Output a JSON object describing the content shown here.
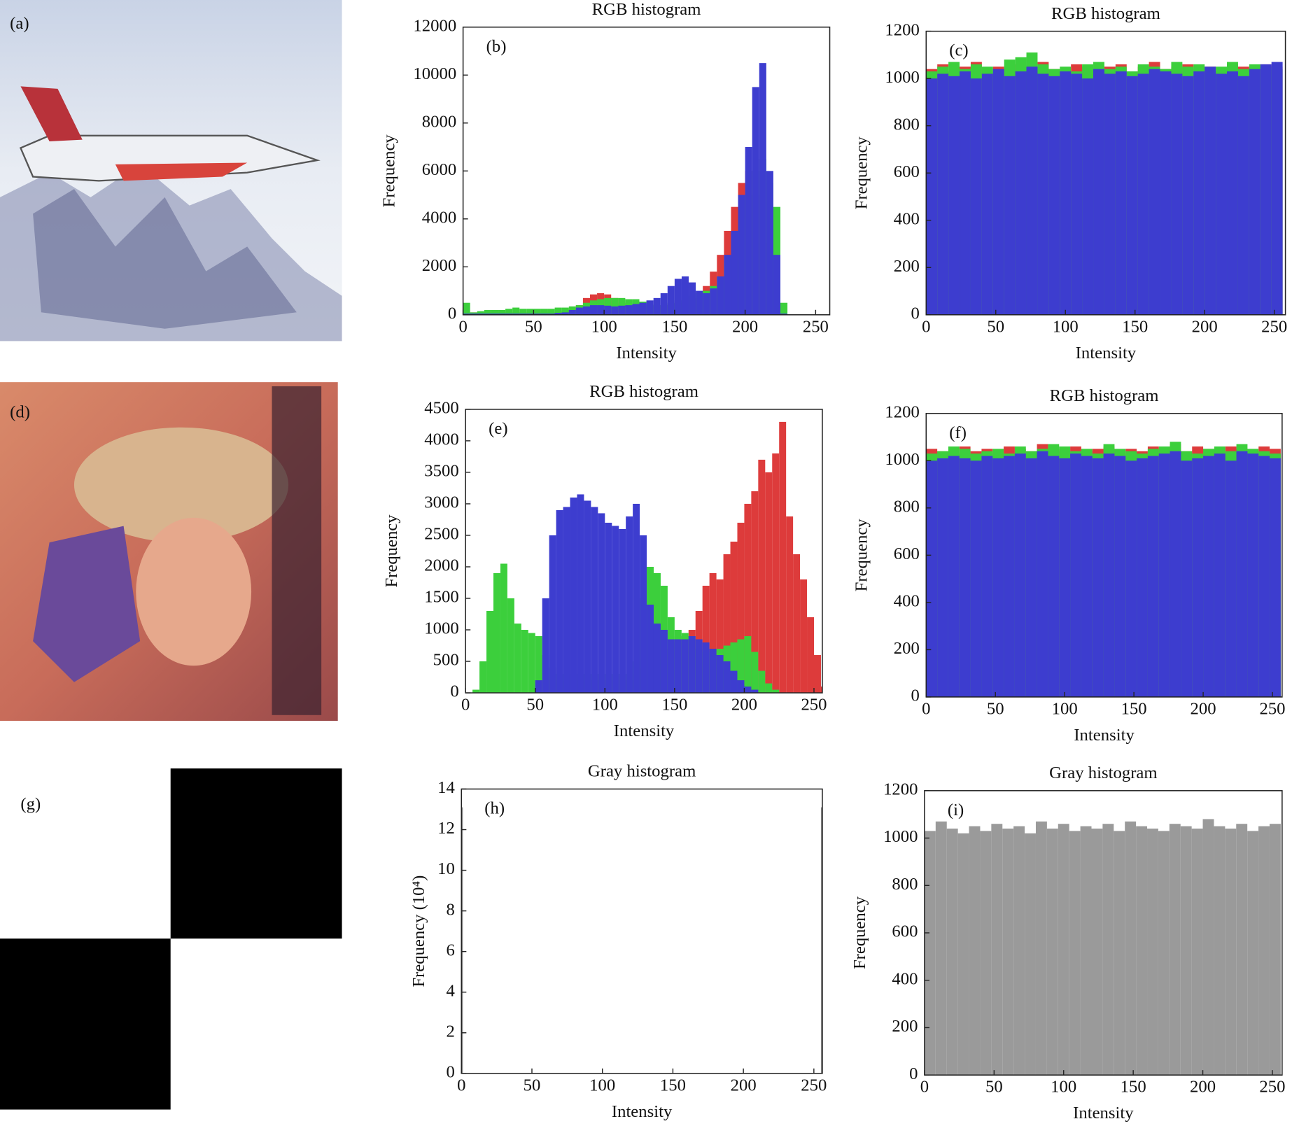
{
  "images": [
    {
      "label": "(a)"
    },
    {
      "label": "(d)"
    },
    {
      "label": "(g)"
    }
  ],
  "chart_data": [
    {
      "type": "histogram",
      "title": "RGB histogram",
      "label": "(b)",
      "x_label": "Intensity",
      "y_label": "Frequency",
      "bins": [
        0,
        5,
        10,
        15,
        20,
        25,
        30,
        35,
        40,
        45,
        50,
        55,
        60,
        65,
        70,
        75,
        80,
        85,
        90,
        95,
        100,
        105,
        110,
        115,
        120,
        125,
        130,
        135,
        140,
        145,
        150,
        155,
        160,
        165,
        170,
        175,
        180,
        185,
        190,
        195,
        200,
        205,
        210,
        215,
        220,
        225,
        230,
        235,
        240,
        245,
        250,
        255,
        260
      ],
      "series": [
        {
          "color": "#dd3b3b",
          "values": [
            50,
            100,
            100,
            100,
            100,
            100,
            100,
            100,
            100,
            100,
            100,
            100,
            100,
            100,
            150,
            250,
            400,
            700,
            850,
            900,
            850,
            700,
            500,
            350,
            300,
            300,
            300,
            350,
            400,
            450,
            500,
            500,
            500,
            700,
            1200,
            1800,
            2500,
            3500,
            4500,
            5500,
            6000,
            5000,
            3000,
            1500,
            500,
            0,
            0,
            0,
            0,
            0,
            0,
            0
          ]
        },
        {
          "color": "#3ccf3c",
          "values": [
            500,
            100,
            150,
            200,
            200,
            200,
            250,
            300,
            250,
            250,
            250,
            250,
            250,
            300,
            300,
            350,
            400,
            500,
            600,
            650,
            700,
            700,
            700,
            650,
            650,
            550,
            450,
            400,
            400,
            500,
            600,
            700,
            800,
            900,
            1000,
            1200,
            1600,
            2200,
            3000,
            4000,
            5000,
            6000,
            6500,
            5500,
            4500,
            500,
            0,
            0,
            0,
            0,
            0,
            0
          ]
        },
        {
          "color": "#3d3dcf",
          "values": [
            50,
            50,
            50,
            50,
            50,
            50,
            50,
            50,
            50,
            50,
            50,
            50,
            50,
            80,
            100,
            200,
            300,
            350,
            400,
            400,
            380,
            350,
            380,
            400,
            450,
            500,
            600,
            700,
            900,
            1200,
            1500,
            1600,
            1350,
            1000,
            900,
            1100,
            1600,
            2500,
            3500,
            5000,
            7000,
            9500,
            10500,
            6000,
            2500,
            50,
            0,
            0,
            0,
            0,
            0,
            0
          ]
        }
      ],
      "xlim": [
        0,
        260
      ],
      "ylim": [
        0,
        12000
      ],
      "xticks": [
        0,
        50,
        100,
        150,
        200,
        250
      ],
      "yticks": [
        0,
        2000,
        4000,
        6000,
        8000,
        10000,
        12000
      ]
    },
    {
      "type": "histogram",
      "title": "RGB histogram",
      "label": "(c)",
      "x_label": "Intensity",
      "y_label": "Frequency",
      "bins": [
        0,
        8,
        16,
        24,
        32,
        40,
        48,
        56,
        64,
        72,
        80,
        88,
        96,
        104,
        112,
        120,
        128,
        136,
        144,
        152,
        160,
        168,
        176,
        184,
        192,
        200,
        208,
        216,
        224,
        232,
        240,
        248,
        256
      ],
      "series": [
        {
          "color": "#dd3b3b",
          "values": [
            1040,
            1060,
            1030,
            1050,
            1070,
            1020,
            1050,
            1040,
            1060,
            1050,
            1070,
            1040,
            1030,
            1060,
            1050,
            1040,
            1050,
            1060,
            1030,
            1050,
            1070,
            1040,
            1050,
            1060,
            1040,
            1050,
            1030,
            1060,
            1050,
            1040,
            1060,
            1050
          ]
        },
        {
          "color": "#3ccf3c",
          "values": [
            1030,
            1050,
            1070,
            1040,
            1060,
            1050,
            1030,
            1080,
            1090,
            1110,
            1060,
            1040,
            1050,
            1030,
            1060,
            1070,
            1040,
            1050,
            1030,
            1060,
            1050,
            1040,
            1070,
            1050,
            1060,
            1030,
            1050,
            1070,
            1040,
            1060,
            1050,
            1040
          ]
        },
        {
          "color": "#3d3dcf",
          "values": [
            1000,
            1020,
            1010,
            1030,
            1000,
            1020,
            1040,
            1010,
            1030,
            1050,
            1020,
            1010,
            1030,
            1020,
            1000,
            1040,
            1020,
            1030,
            1010,
            1020,
            1040,
            1030,
            1020,
            1010,
            1030,
            1050,
            1020,
            1030,
            1010,
            1040,
            1060,
            1070
          ]
        }
      ],
      "xlim": [
        0,
        258
      ],
      "ylim": [
        0,
        1200
      ],
      "xticks": [
        0,
        50,
        100,
        150,
        200,
        250
      ],
      "yticks": [
        0,
        200,
        400,
        600,
        800,
        1000,
        1200
      ]
    },
    {
      "type": "histogram",
      "title": "RGB histogram",
      "label": "(e)",
      "x_label": "Intensity",
      "y_label": "Frequency",
      "bins": [
        0,
        5,
        10,
        15,
        20,
        25,
        30,
        35,
        40,
        45,
        50,
        55,
        60,
        65,
        70,
        75,
        80,
        85,
        90,
        95,
        100,
        105,
        110,
        115,
        120,
        125,
        130,
        135,
        140,
        145,
        150,
        155,
        160,
        165,
        170,
        175,
        180,
        185,
        190,
        195,
        200,
        205,
        210,
        215,
        220,
        225,
        230,
        235,
        240,
        245,
        250,
        255,
        256
      ],
      "series": [
        {
          "color": "#dd3b3b",
          "values": [
            0,
            0,
            0,
            0,
            0,
            0,
            0,
            0,
            0,
            0,
            0,
            200,
            200,
            200,
            200,
            200,
            200,
            200,
            200,
            200,
            200,
            200,
            200,
            200,
            200,
            400,
            500,
            600,
            700,
            800,
            900,
            900,
            1000,
            1300,
            1700,
            1900,
            1800,
            2200,
            2400,
            2700,
            3000,
            3200,
            3700,
            3500,
            3800,
            4300,
            2800,
            2200,
            1800,
            1200,
            600,
            100
          ]
        },
        {
          "color": "#3ccf3c",
          "values": [
            0,
            50,
            500,
            1300,
            1900,
            2050,
            1500,
            1100,
            1000,
            950,
            900,
            600,
            400,
            300,
            300,
            300,
            300,
            300,
            300,
            300,
            300,
            300,
            300,
            300,
            500,
            1500,
            2000,
            1900,
            1700,
            1200,
            1000,
            950,
            900,
            700,
            650,
            650,
            700,
            750,
            800,
            850,
            900,
            650,
            350,
            150,
            50,
            0,
            0,
            0,
            0,
            0,
            0,
            0
          ]
        },
        {
          "color": "#3d3dcf",
          "values": [
            0,
            0,
            0,
            0,
            0,
            0,
            0,
            0,
            0,
            0,
            200,
            1500,
            2500,
            2900,
            2950,
            3100,
            3150,
            3050,
            2950,
            2850,
            2700,
            2650,
            2600,
            2800,
            3000,
            2500,
            1400,
            1100,
            1000,
            850,
            850,
            850,
            900,
            850,
            800,
            700,
            600,
            500,
            350,
            200,
            100,
            50,
            0,
            0,
            0,
            0,
            0,
            0,
            0,
            0,
            0,
            0
          ]
        }
      ],
      "xlim": [
        0,
        256
      ],
      "ylim": [
        0,
        4500
      ],
      "xticks": [
        0,
        50,
        100,
        150,
        200,
        250
      ],
      "yticks": [
        0,
        500,
        1000,
        1500,
        2000,
        2500,
        3000,
        3500,
        4000,
        4500
      ]
    },
    {
      "type": "histogram",
      "title": "RGB histogram",
      "label": "(f)",
      "x_label": "Intensity",
      "y_label": "Frequency",
      "bins": [
        0,
        8,
        16,
        24,
        32,
        40,
        48,
        56,
        64,
        72,
        80,
        88,
        96,
        104,
        112,
        120,
        128,
        136,
        144,
        152,
        160,
        168,
        176,
        184,
        192,
        200,
        208,
        216,
        224,
        232,
        240,
        248,
        256
      ],
      "series": [
        {
          "color": "#dd3b3b",
          "values": [
            1050,
            1040,
            1030,
            1060,
            1040,
            1050,
            1030,
            1060,
            1050,
            1040,
            1070,
            1050,
            1040,
            1060,
            1040,
            1050,
            1060,
            1030,
            1050,
            1040,
            1060,
            1050,
            1070,
            1040,
            1060,
            1050,
            1040,
            1060,
            1050,
            1040,
            1060,
            1050
          ]
        },
        {
          "color": "#3ccf3c",
          "values": [
            1030,
            1040,
            1060,
            1050,
            1030,
            1040,
            1050,
            1030,
            1060,
            1040,
            1050,
            1070,
            1060,
            1040,
            1050,
            1030,
            1070,
            1050,
            1040,
            1030,
            1050,
            1060,
            1080,
            1040,
            1030,
            1050,
            1060,
            1040,
            1070,
            1050,
            1040,
            1030
          ]
        },
        {
          "color": "#3d3dcf",
          "values": [
            1000,
            1010,
            1020,
            1010,
            1000,
            1020,
            1010,
            1020,
            1030,
            1010,
            1040,
            1020,
            1010,
            1030,
            1020,
            1010,
            1030,
            1020,
            1000,
            1010,
            1020,
            1030,
            1040,
            1000,
            1010,
            1020,
            1030,
            1000,
            1040,
            1030,
            1020,
            1010
          ]
        }
      ],
      "xlim": [
        0,
        257
      ],
      "ylim": [
        0,
        1200
      ],
      "xticks": [
        0,
        50,
        100,
        150,
        200,
        250
      ],
      "yticks": [
        0,
        200,
        400,
        600,
        800,
        1000,
        1200
      ]
    },
    {
      "type": "histogram",
      "title": "Gray histogram",
      "label": "(h)",
      "x_label": "Intensity",
      "y_label": "Frequency (10⁴)",
      "bins": [
        0,
        1,
        255,
        256
      ],
      "series": [
        {
          "color": "#8a8a8a",
          "values": [
            13.1,
            0,
            13.1
          ]
        }
      ],
      "xlim": [
        0,
        256
      ],
      "ylim": [
        0,
        14
      ],
      "xticks": [
        0,
        50,
        100,
        150,
        200,
        250
      ],
      "yticks": [
        0,
        2,
        4,
        6,
        8,
        10,
        12,
        14
      ]
    },
    {
      "type": "histogram",
      "title": "Gray histogram",
      "label": "(i)",
      "x_label": "Intensity",
      "y_label": "Frequency",
      "bins": [
        0,
        8,
        16,
        24,
        32,
        40,
        48,
        56,
        64,
        72,
        80,
        88,
        96,
        104,
        112,
        120,
        128,
        136,
        144,
        152,
        160,
        168,
        176,
        184,
        192,
        200,
        208,
        216,
        224,
        232,
        240,
        248,
        256
      ],
      "series": [
        {
          "color": "#9a9a9a",
          "values": [
            1030,
            1070,
            1040,
            1020,
            1050,
            1030,
            1060,
            1040,
            1050,
            1020,
            1070,
            1040,
            1060,
            1030,
            1050,
            1040,
            1060,
            1030,
            1070,
            1050,
            1040,
            1030,
            1060,
            1050,
            1040,
            1080,
            1050,
            1040,
            1060,
            1030,
            1050,
            1060
          ]
        }
      ],
      "xlim": [
        0,
        257
      ],
      "ylim": [
        0,
        1200
      ],
      "xticks": [
        0,
        50,
        100,
        150,
        200,
        250
      ],
      "yticks": [
        0,
        200,
        400,
        600,
        800,
        1000,
        1200
      ]
    }
  ]
}
